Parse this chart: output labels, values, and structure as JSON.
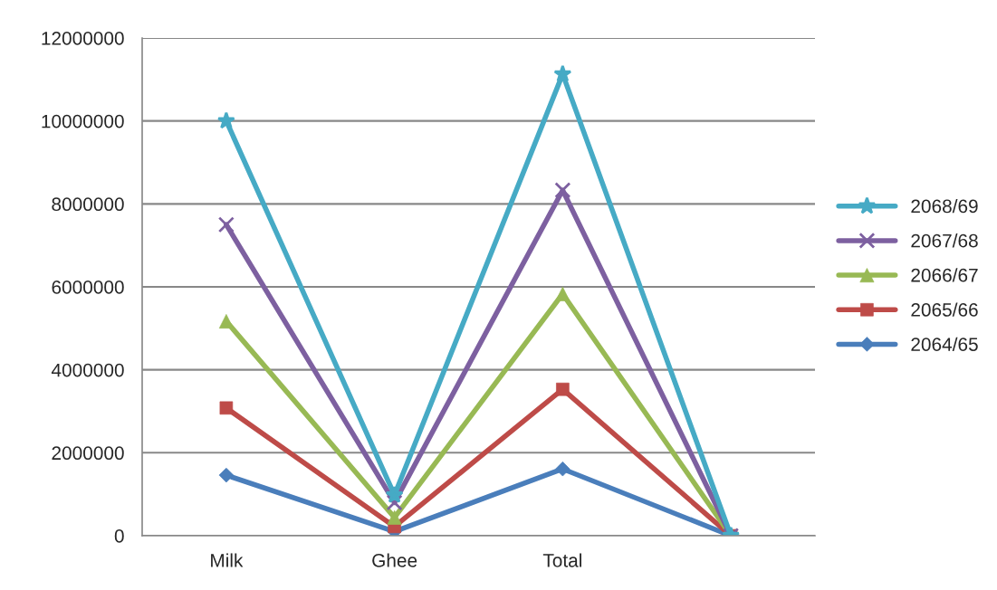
{
  "chart_data": {
    "type": "line",
    "categories": [
      "Milk",
      "Ghee",
      "Total",
      null
    ],
    "series": [
      {
        "name": "2064/65",
        "color": "#4a7ebb",
        "marker": "diamond",
        "values": [
          1460000,
          100000,
          1610000,
          0
        ]
      },
      {
        "name": "2065/66",
        "color": "#be4b48",
        "marker": "square",
        "values": [
          3080000,
          220000,
          3530000,
          0
        ]
      },
      {
        "name": "2066/67",
        "color": "#98b954",
        "marker": "triangle",
        "values": [
          5170000,
          440000,
          5830000,
          0
        ]
      },
      {
        "name": "2067/68",
        "color": "#7d60a0",
        "marker": "cross",
        "values": [
          7500000,
          800000,
          8330000,
          0
        ]
      },
      {
        "name": "2068/69",
        "color": "#46aac5",
        "marker": "star",
        "values": [
          10000000,
          980000,
          11130000,
          0
        ]
      }
    ],
    "ylim": [
      0,
      12000000
    ],
    "yticks": [
      0,
      2000000,
      4000000,
      6000000,
      8000000,
      10000000,
      12000000
    ],
    "grid": "y",
    "legend": "right",
    "line_style": "solid"
  }
}
